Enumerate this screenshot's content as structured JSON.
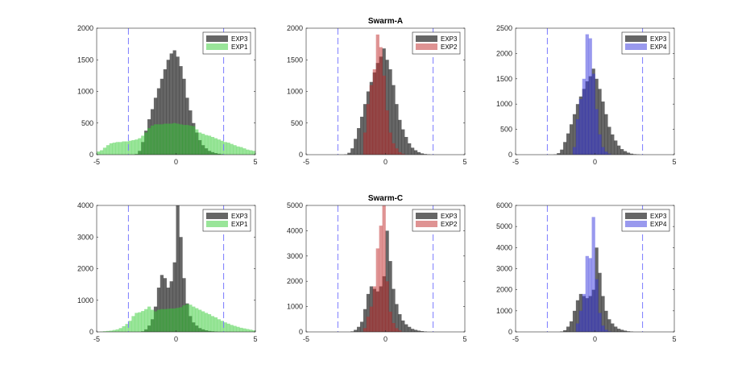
{
  "chart_data": [
    {
      "type": "bar",
      "subtype": "histogram",
      "title": "",
      "bin_start": -5,
      "bin_width": 0.2,
      "xlim": [
        -5,
        5
      ],
      "ylim": [
        0,
        2000
      ],
      "xticks": [
        -5,
        0,
        5
      ],
      "yticks": [
        0,
        500,
        1000,
        1500,
        2000
      ],
      "vlines": [
        -3,
        3
      ],
      "legend": "top-right",
      "grid": false,
      "series": [
        {
          "name": "EXP3",
          "color": "#000000",
          "values": [
            0,
            0,
            0,
            0,
            0,
            0,
            0,
            0,
            0,
            0,
            0,
            0,
            10,
            60,
            200,
            380,
            560,
            720,
            900,
            1050,
            1200,
            1350,
            1500,
            1600,
            1650,
            1550,
            1400,
            1200,
            900,
            700,
            500,
            350,
            230,
            150,
            100,
            60,
            40,
            25,
            15,
            8,
            0,
            0,
            0,
            0,
            0,
            0,
            0,
            0,
            0,
            0
          ]
        },
        {
          "name": "EXP1",
          "color": "#33cc33",
          "values": [
            50,
            70,
            110,
            150,
            180,
            190,
            200,
            200,
            210,
            210,
            220,
            230,
            240,
            260,
            300,
            350,
            420,
            460,
            480,
            480,
            480,
            490,
            490,
            490,
            500,
            490,
            480,
            470,
            470,
            460,
            450,
            400,
            350,
            330,
            310,
            300,
            280,
            260,
            240,
            220,
            200,
            190,
            170,
            150,
            130,
            120,
            100,
            80,
            70,
            60
          ]
        }
      ]
    },
    {
      "type": "bar",
      "subtype": "histogram",
      "title": "Swarm-A",
      "bin_start": -5,
      "bin_width": 0.2,
      "xlim": [
        -5,
        5
      ],
      "ylim": [
        0,
        2000
      ],
      "xticks": [
        -5,
        0,
        5
      ],
      "yticks": [
        0,
        500,
        1000,
        1500,
        2000
      ],
      "vlines": [
        -3,
        3
      ],
      "legend": "top-right",
      "grid": false,
      "series": [
        {
          "name": "EXP3",
          "color": "#000000",
          "values": [
            0,
            0,
            0,
            0,
            0,
            0,
            0,
            0,
            0,
            0,
            0,
            0,
            5,
            30,
            100,
            250,
            420,
            600,
            800,
            1000,
            1150,
            1300,
            1450,
            1550,
            1680,
            1500,
            1350,
            1100,
            800,
            550,
            400,
            280,
            180,
            110,
            70,
            40,
            20,
            10,
            5,
            0,
            0,
            0,
            0,
            0,
            0,
            0,
            0,
            0,
            0,
            0
          ]
        },
        {
          "name": "EXP2",
          "color": "#c02828",
          "values": [
            0,
            0,
            0,
            0,
            0,
            0,
            0,
            0,
            0,
            0,
            0,
            0,
            0,
            0,
            0,
            0,
            0,
            0,
            350,
            800,
            1100,
            1350,
            1900,
            1700,
            1250,
            700,
            350,
            180,
            100,
            40,
            15,
            0,
            0,
            0,
            0,
            0,
            0,
            0,
            0,
            0,
            0,
            0,
            0,
            0,
            0,
            0,
            0,
            0,
            0,
            0
          ]
        }
      ]
    },
    {
      "type": "bar",
      "subtype": "histogram",
      "title": "",
      "bin_start": -5,
      "bin_width": 0.2,
      "xlim": [
        -5,
        5
      ],
      "ylim": [
        0,
        2500
      ],
      "xticks": [
        -5,
        0,
        5
      ],
      "yticks": [
        0,
        500,
        1000,
        1500,
        2000,
        2500
      ],
      "vlines": [
        -3,
        3
      ],
      "legend": "top-right",
      "grid": false,
      "series": [
        {
          "name": "EXP3",
          "color": "#000000",
          "values": [
            0,
            0,
            0,
            0,
            0,
            0,
            0,
            0,
            0,
            0,
            0,
            0,
            5,
            30,
            100,
            250,
            420,
            600,
            800,
            1000,
            1150,
            1300,
            1450,
            1550,
            1700,
            1500,
            1300,
            1050,
            800,
            550,
            400,
            280,
            180,
            110,
            70,
            40,
            20,
            10,
            5,
            0,
            0,
            0,
            0,
            0,
            0,
            0,
            0,
            0,
            0,
            0
          ]
        },
        {
          "name": "EXP4",
          "color": "#3333dd",
          "values": [
            0,
            0,
            0,
            0,
            0,
            0,
            0,
            0,
            0,
            0,
            0,
            0,
            0,
            0,
            0,
            0,
            0,
            0,
            150,
            700,
            1100,
            1500,
            2380,
            2300,
            1600,
            900,
            400,
            150,
            60,
            20,
            0,
            0,
            0,
            0,
            0,
            0,
            0,
            0,
            0,
            0,
            0,
            0,
            0,
            0,
            0,
            0,
            0,
            0,
            0,
            0
          ]
        }
      ]
    },
    {
      "type": "bar",
      "subtype": "histogram",
      "title": "",
      "bin_start": -5,
      "bin_width": 0.2,
      "xlim": [
        -5,
        5
      ],
      "ylim": [
        0,
        4000
      ],
      "xticks": [
        -5,
        0,
        5
      ],
      "yticks": [
        0,
        1000,
        2000,
        3000,
        4000
      ],
      "vlines": [
        -3,
        3
      ],
      "legend": "top-right",
      "grid": false,
      "series": [
        {
          "name": "EXP3",
          "color": "#000000",
          "values": [
            0,
            0,
            0,
            0,
            0,
            0,
            0,
            0,
            0,
            0,
            0,
            0,
            0,
            0,
            20,
            80,
            200,
            400,
            800,
            1400,
            1800,
            1700,
            1400,
            1600,
            2200,
            4000,
            3000,
            1700,
            900,
            500,
            300,
            200,
            120,
            80,
            50,
            30,
            20,
            10,
            0,
            0,
            0,
            0,
            0,
            0,
            0,
            0,
            0,
            0,
            0,
            0
          ]
        },
        {
          "name": "EXP1",
          "color": "#33cc33",
          "values": [
            0,
            10,
            20,
            30,
            40,
            60,
            80,
            120,
            180,
            250,
            350,
            500,
            600,
            620,
            660,
            720,
            800,
            700,
            650,
            700,
            720,
            720,
            730,
            740,
            740,
            760,
            780,
            840,
            880,
            860,
            800,
            750,
            700,
            650,
            600,
            560,
            500,
            460,
            400,
            350,
            300,
            260,
            220,
            190,
            160,
            130,
            110,
            90,
            70,
            50
          ]
        }
      ]
    },
    {
      "type": "bar",
      "subtype": "histogram",
      "title": "Swarm-C",
      "bin_start": -5,
      "bin_width": 0.2,
      "xlim": [
        -5,
        5
      ],
      "ylim": [
        0,
        5000
      ],
      "xticks": [
        -5,
        0,
        5
      ],
      "yticks": [
        0,
        1000,
        2000,
        3000,
        4000,
        5000
      ],
      "vlines": [
        -3,
        3
      ],
      "legend": "top-right",
      "grid": false,
      "series": [
        {
          "name": "EXP3",
          "color": "#000000",
          "values": [
            0,
            0,
            0,
            0,
            0,
            0,
            0,
            0,
            0,
            0,
            0,
            0,
            0,
            0,
            20,
            80,
            200,
            400,
            900,
            1500,
            1800,
            1700,
            1600,
            1800,
            2200,
            4000,
            2800,
            1700,
            1100,
            700,
            450,
            300,
            200,
            120,
            80,
            50,
            30,
            15,
            0,
            0,
            0,
            0,
            0,
            0,
            0,
            0,
            0,
            0,
            0,
            0
          ]
        },
        {
          "name": "EXP2",
          "color": "#c02828",
          "values": [
            0,
            0,
            0,
            0,
            0,
            0,
            0,
            0,
            0,
            0,
            0,
            0,
            0,
            0,
            0,
            0,
            0,
            0,
            150,
            600,
            1000,
            1800,
            3300,
            4200,
            5000,
            2000,
            800,
            350,
            150,
            60,
            0,
            0,
            0,
            0,
            0,
            0,
            0,
            0,
            0,
            0,
            0,
            0,
            0,
            0,
            0,
            0,
            0,
            0,
            0,
            0
          ]
        }
      ]
    },
    {
      "type": "bar",
      "subtype": "histogram",
      "title": "",
      "bin_start": -5,
      "bin_width": 0.2,
      "xlim": [
        -5,
        5
      ],
      "ylim": [
        0,
        6000
      ],
      "xticks": [
        -5,
        0,
        5
      ],
      "yticks": [
        0,
        1000,
        2000,
        3000,
        4000,
        5000,
        6000
      ],
      "vlines": [
        -3,
        3
      ],
      "legend": "top-right",
      "grid": false,
      "series": [
        {
          "name": "EXP3",
          "color": "#000000",
          "values": [
            0,
            0,
            0,
            0,
            0,
            0,
            0,
            0,
            0,
            0,
            0,
            0,
            0,
            0,
            20,
            80,
            250,
            500,
            1000,
            1500,
            1800,
            1700,
            1600,
            1700,
            2000,
            4000,
            2800,
            1700,
            1000,
            600,
            400,
            250,
            150,
            100,
            60,
            30,
            15,
            0,
            0,
            0,
            0,
            0,
            0,
            0,
            0,
            0,
            0,
            0,
            0,
            0
          ]
        },
        {
          "name": "EXP4",
          "color": "#3333dd",
          "values": [
            0,
            0,
            0,
            0,
            0,
            0,
            0,
            0,
            0,
            0,
            0,
            0,
            0,
            0,
            0,
            0,
            0,
            0,
            0,
            400,
            1000,
            1800,
            3600,
            3500,
            5450,
            2500,
            900,
            300,
            100,
            30,
            0,
            0,
            0,
            0,
            0,
            0,
            0,
            0,
            0,
            0,
            0,
            0,
            0,
            0,
            0,
            0,
            0,
            0,
            0,
            0
          ]
        }
      ]
    }
  ],
  "vline_color": "#7a7aff"
}
